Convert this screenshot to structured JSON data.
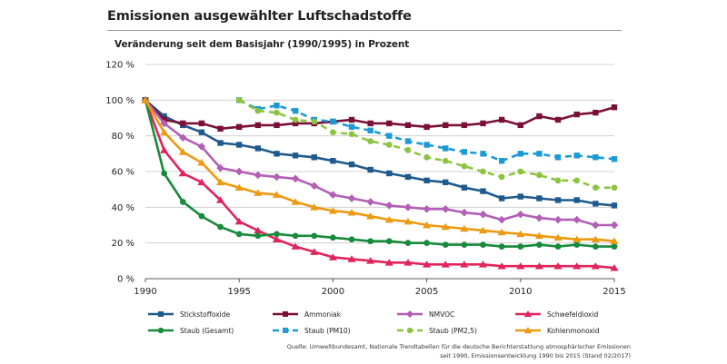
{
  "header": {
    "title": "Emissionen ausgewählter Luftschadstoffe",
    "subtitle": "Veränderung seit dem Basisjahr (1990/1995) in Prozent"
  },
  "source": {
    "line1": "Quelle: Umweltbundesamt, Nationale Trendtabellen für die deutsche Berichterstattung atmosphärischer Emissionen",
    "line2": "seit 1990, Emissionsentwicklung 1990 bis 2015 (Stand 02/2017)"
  },
  "chart_data": {
    "type": "line",
    "title": "Emissionen ausgewählter Luftschadstoffe",
    "subtitle": "Veränderung seit dem Basisjahr (1990/1995) in Prozent",
    "xlabel": "",
    "ylabel": "",
    "xlim": [
      1990,
      2015
    ],
    "ylim": [
      0,
      120
    ],
    "xticks": [
      1990,
      1995,
      2000,
      2005,
      2010,
      2015
    ],
    "yticks": [
      0,
      20,
      40,
      60,
      80,
      100,
      120
    ],
    "ytick_labels": [
      "0 %",
      "20 %",
      "40 %",
      "60 %",
      "80 %",
      "100 %",
      "120 %"
    ],
    "grid": "horizontal",
    "legend_position": "bottom",
    "series": [
      {
        "name": "Stickstoffoxide",
        "color": "#1f5a8c",
        "marker": "square",
        "dash": "solid",
        "x": [
          1990,
          1991,
          1992,
          1993,
          1994,
          1995,
          1996,
          1997,
          1998,
          1999,
          2000,
          2001,
          2002,
          2003,
          2004,
          2005,
          2006,
          2007,
          2008,
          2009,
          2010,
          2011,
          2012,
          2013,
          2014,
          2015
        ],
        "values": [
          100,
          91,
          86,
          82,
          76,
          75,
          73,
          70,
          69,
          68,
          66,
          64,
          61,
          59,
          57,
          55,
          54,
          51,
          49,
          45,
          46,
          45,
          44,
          44,
          42,
          41
        ]
      },
      {
        "name": "Ammoniak",
        "color": "#7a1035",
        "marker": "square",
        "dash": "solid",
        "x": [
          1990,
          1991,
          1992,
          1993,
          1994,
          1995,
          1996,
          1997,
          1998,
          1999,
          2000,
          2001,
          2002,
          2003,
          2004,
          2005,
          2006,
          2007,
          2008,
          2009,
          2010,
          2011,
          2012,
          2013,
          2014,
          2015
        ],
        "values": [
          100,
          89,
          87,
          87,
          84,
          85,
          86,
          86,
          87,
          87,
          88,
          89,
          87,
          87,
          86,
          85,
          86,
          86,
          87,
          89,
          86,
          91,
          89,
          92,
          93,
          96
        ]
      },
      {
        "name": "NMVOC",
        "color": "#b25fb5",
        "marker": "diamond",
        "dash": "solid",
        "x": [
          1990,
          1991,
          1992,
          1993,
          1994,
          1995,
          1996,
          1997,
          1998,
          1999,
          2000,
          2001,
          2002,
          2003,
          2004,
          2005,
          2006,
          2007,
          2008,
          2009,
          2010,
          2011,
          2012,
          2013,
          2014,
          2015
        ],
        "values": [
          100,
          87,
          79,
          74,
          62,
          60,
          58,
          57,
          56,
          52,
          47,
          45,
          43,
          41,
          40,
          39,
          39,
          37,
          36,
          33,
          36,
          34,
          33,
          33,
          30,
          30
        ]
      },
      {
        "name": "Schwefeldioxid",
        "color": "#e0245c",
        "marker": "triangle",
        "dash": "solid",
        "x": [
          1990,
          1991,
          1992,
          1993,
          1994,
          1995,
          1996,
          1997,
          1998,
          1999,
          2000,
          2001,
          2002,
          2003,
          2004,
          2005,
          2006,
          2007,
          2008,
          2009,
          2010,
          2011,
          2012,
          2013,
          2014,
          2015
        ],
        "values": [
          100,
          72,
          59,
          54,
          44,
          32,
          27,
          22,
          18,
          15,
          12,
          11,
          10,
          9,
          9,
          8,
          8,
          8,
          8,
          7,
          7,
          7,
          7,
          7,
          7,
          6
        ]
      },
      {
        "name": "Staub (Gesamt)",
        "color": "#178a3c",
        "marker": "circle",
        "dash": "solid",
        "x": [
          1990,
          1991,
          1992,
          1993,
          1994,
          1995,
          1996,
          1997,
          1998,
          1999,
          2000,
          2001,
          2002,
          2003,
          2004,
          2005,
          2006,
          2007,
          2008,
          2009,
          2010,
          2011,
          2012,
          2013,
          2014,
          2015
        ],
        "values": [
          100,
          59,
          43,
          35,
          29,
          25,
          24,
          25,
          24,
          24,
          23,
          22,
          21,
          21,
          20,
          20,
          19,
          19,
          19,
          18,
          18,
          19,
          18,
          19,
          18,
          18
        ]
      },
      {
        "name": "Staub (PM10)",
        "color": "#1b9ad6",
        "marker": "square",
        "dash": "dashed",
        "x": [
          1995,
          1996,
          1997,
          1998,
          1999,
          2000,
          2001,
          2002,
          2003,
          2004,
          2005,
          2006,
          2007,
          2008,
          2009,
          2010,
          2011,
          2012,
          2013,
          2014,
          2015
        ],
        "values": [
          100,
          95,
          97,
          94,
          89,
          88,
          85,
          83,
          80,
          77,
          75,
          73,
          71,
          70,
          66,
          70,
          70,
          68,
          69,
          68,
          67
        ]
      },
      {
        "name": "Staub (PM2,5)",
        "color": "#8cc43f",
        "marker": "circle",
        "dash": "dashed",
        "x": [
          1995,
          1996,
          1997,
          1998,
          1999,
          2000,
          2001,
          2002,
          2003,
          2004,
          2005,
          2006,
          2007,
          2008,
          2009,
          2010,
          2011,
          2012,
          2013,
          2014,
          2015
        ],
        "values": [
          100,
          94,
          93,
          89,
          88,
          82,
          81,
          77,
          75,
          72,
          68,
          66,
          63,
          60,
          57,
          60,
          58,
          55,
          55,
          51,
          51
        ]
      },
      {
        "name": "Kohlenmonoxid",
        "color": "#eb9a12",
        "marker": "triangle",
        "dash": "solid",
        "x": [
          1990,
          1991,
          1992,
          1993,
          1994,
          1995,
          1996,
          1997,
          1998,
          1999,
          2000,
          2001,
          2002,
          2003,
          2004,
          2005,
          2006,
          2007,
          2008,
          2009,
          2010,
          2011,
          2012,
          2013,
          2014,
          2015
        ],
        "values": [
          100,
          82,
          71,
          65,
          54,
          51,
          48,
          47,
          43,
          40,
          38,
          37,
          35,
          33,
          32,
          30,
          29,
          28,
          27,
          26,
          25,
          24,
          23,
          22,
          22,
          21
        ]
      }
    ]
  }
}
